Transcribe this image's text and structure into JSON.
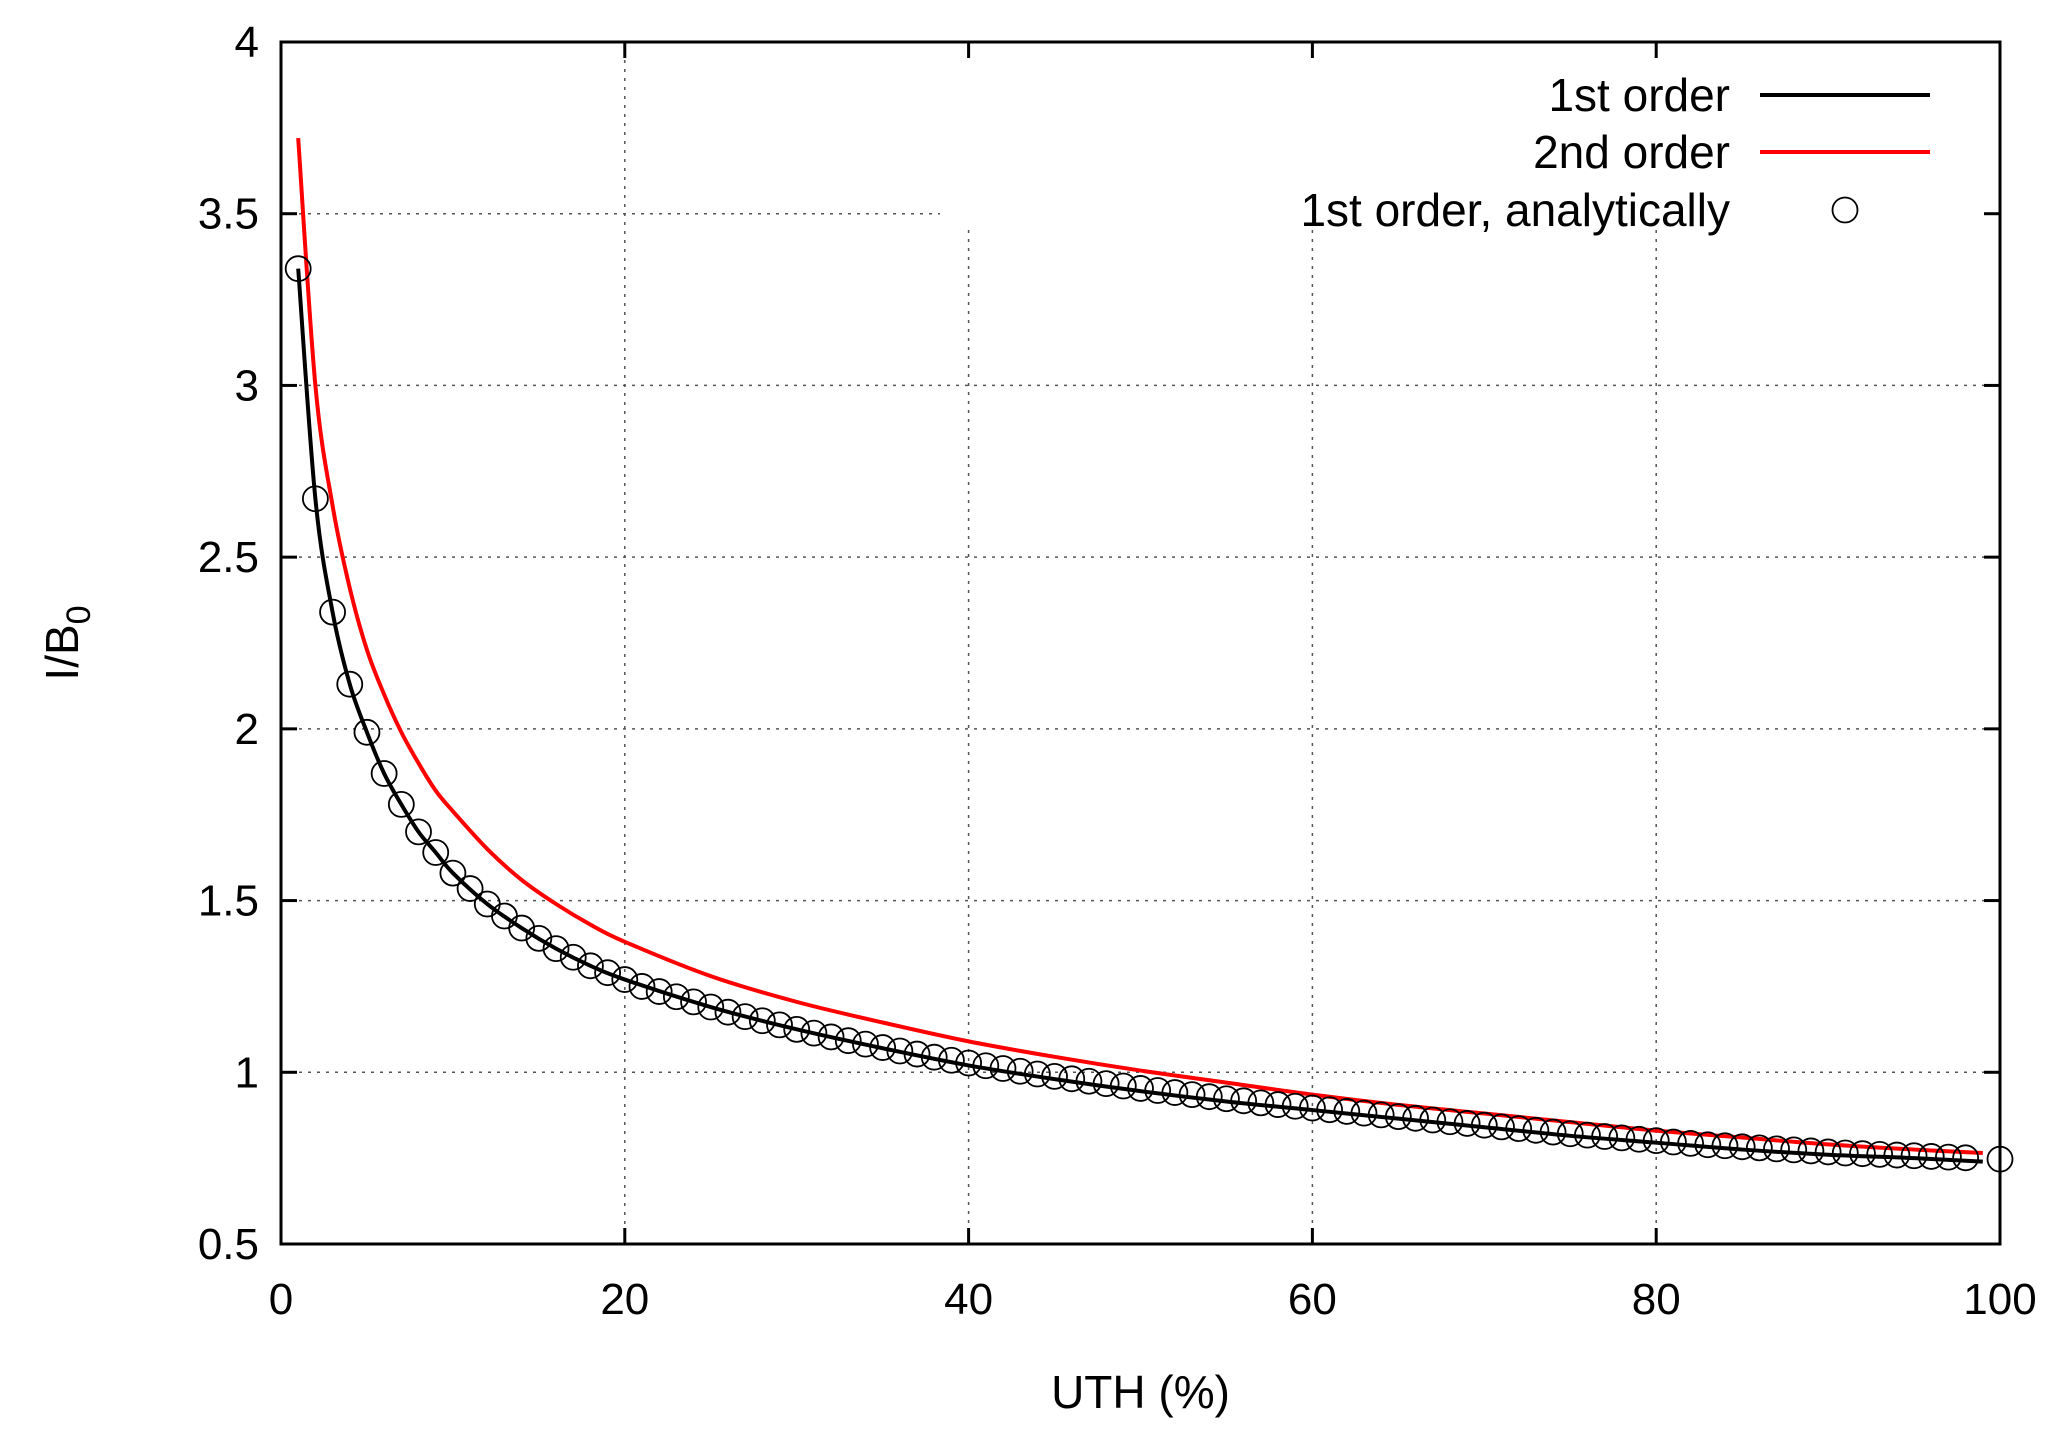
{
  "chart_data": {
    "type": "line",
    "xlabel": "UTH (%)",
    "ylabel": "I/B",
    "ylabel_subscript": "0",
    "xlim": [
      0,
      100
    ],
    "ylim": [
      0.5,
      4
    ],
    "xticks": [
      0,
      20,
      40,
      60,
      80,
      100
    ],
    "yticks": [
      0.5,
      1,
      1.5,
      2,
      2.5,
      3,
      3.5,
      4
    ],
    "xtick_labels": [
      "0",
      "20",
      "40",
      "60",
      "80",
      "100"
    ],
    "ytick_labels": [
      "0.5",
      "1",
      "1.5",
      "2",
      "2.5",
      "3",
      "3.5",
      "4"
    ],
    "grid": true,
    "legend_position": "top-right",
    "series": [
      {
        "name": "1st order",
        "style": "line",
        "color": "#000000",
        "x": [
          1,
          2,
          3,
          4,
          5,
          6,
          7,
          8,
          9,
          10,
          12,
          14,
          16,
          18,
          20,
          25,
          30,
          35,
          40,
          45,
          50,
          55,
          60,
          65,
          70,
          75,
          80,
          85,
          90,
          95,
          99
        ],
        "y": [
          3.34,
          2.67,
          2.34,
          2.13,
          1.99,
          1.87,
          1.78,
          1.7,
          1.64,
          1.58,
          1.49,
          1.42,
          1.36,
          1.31,
          1.27,
          1.19,
          1.125,
          1.07,
          1.02,
          0.98,
          0.945,
          0.915,
          0.89,
          0.865,
          0.84,
          0.815,
          0.795,
          0.775,
          0.76,
          0.75,
          0.74
        ]
      },
      {
        "name": "2nd order",
        "style": "line",
        "color": "#ff0000",
        "x": [
          1,
          2,
          3,
          4,
          5,
          6,
          7,
          8,
          9,
          10,
          12,
          14,
          16,
          18,
          20,
          25,
          30,
          35,
          40,
          45,
          50,
          55,
          60,
          65,
          70,
          75,
          80,
          85,
          90,
          95,
          99
        ],
        "y": [
          3.72,
          3.0,
          2.65,
          2.41,
          2.23,
          2.1,
          1.99,
          1.9,
          1.82,
          1.76,
          1.65,
          1.56,
          1.49,
          1.43,
          1.38,
          1.28,
          1.205,
          1.145,
          1.09,
          1.045,
          1.005,
          0.97,
          0.935,
          0.905,
          0.88,
          0.855,
          0.83,
          0.81,
          0.79,
          0.775,
          0.765
        ]
      },
      {
        "name": "1st order, analytically",
        "style": "markers",
        "marker": "circle",
        "color": "#000000",
        "x": [
          1,
          2,
          3,
          4,
          5,
          6,
          7,
          8,
          9,
          10,
          11,
          12,
          13,
          14,
          15,
          16,
          17,
          18,
          19,
          20,
          21,
          22,
          23,
          24,
          25,
          26,
          27,
          28,
          29,
          30,
          31,
          32,
          33,
          34,
          35,
          36,
          37,
          38,
          39,
          40,
          41,
          42,
          43,
          44,
          45,
          46,
          47,
          48,
          49,
          50,
          51,
          52,
          53,
          54,
          55,
          56,
          57,
          58,
          59,
          60,
          61,
          62,
          63,
          64,
          65,
          66,
          67,
          68,
          69,
          70,
          71,
          72,
          73,
          74,
          75,
          76,
          77,
          78,
          79,
          80,
          81,
          82,
          83,
          84,
          85,
          86,
          87,
          88,
          89,
          90,
          91,
          92,
          93,
          94,
          95,
          96,
          97,
          98,
          100
        ],
        "y": [
          3.34,
          2.67,
          2.34,
          2.13,
          1.99,
          1.87,
          1.78,
          1.7,
          1.64,
          1.58,
          1.535,
          1.49,
          1.455,
          1.42,
          1.39,
          1.36,
          1.335,
          1.31,
          1.29,
          1.27,
          1.25,
          1.235,
          1.22,
          1.205,
          1.19,
          1.175,
          1.162,
          1.15,
          1.138,
          1.125,
          1.114,
          1.103,
          1.092,
          1.082,
          1.072,
          1.062,
          1.053,
          1.044,
          1.035,
          1.027,
          1.019,
          1.011,
          1.003,
          0.995,
          0.988,
          0.981,
          0.974,
          0.967,
          0.96,
          0.953,
          0.947,
          0.941,
          0.935,
          0.929,
          0.923,
          0.917,
          0.911,
          0.906,
          0.901,
          0.896,
          0.891,
          0.886,
          0.881,
          0.876,
          0.871,
          0.866,
          0.861,
          0.856,
          0.851,
          0.846,
          0.841,
          0.836,
          0.831,
          0.826,
          0.821,
          0.817,
          0.813,
          0.809,
          0.805,
          0.801,
          0.797,
          0.793,
          0.789,
          0.786,
          0.783,
          0.78,
          0.777,
          0.774,
          0.771,
          0.768,
          0.765,
          0.763,
          0.761,
          0.759,
          0.757,
          0.755,
          0.753,
          0.751,
          0.747
        ]
      }
    ]
  }
}
